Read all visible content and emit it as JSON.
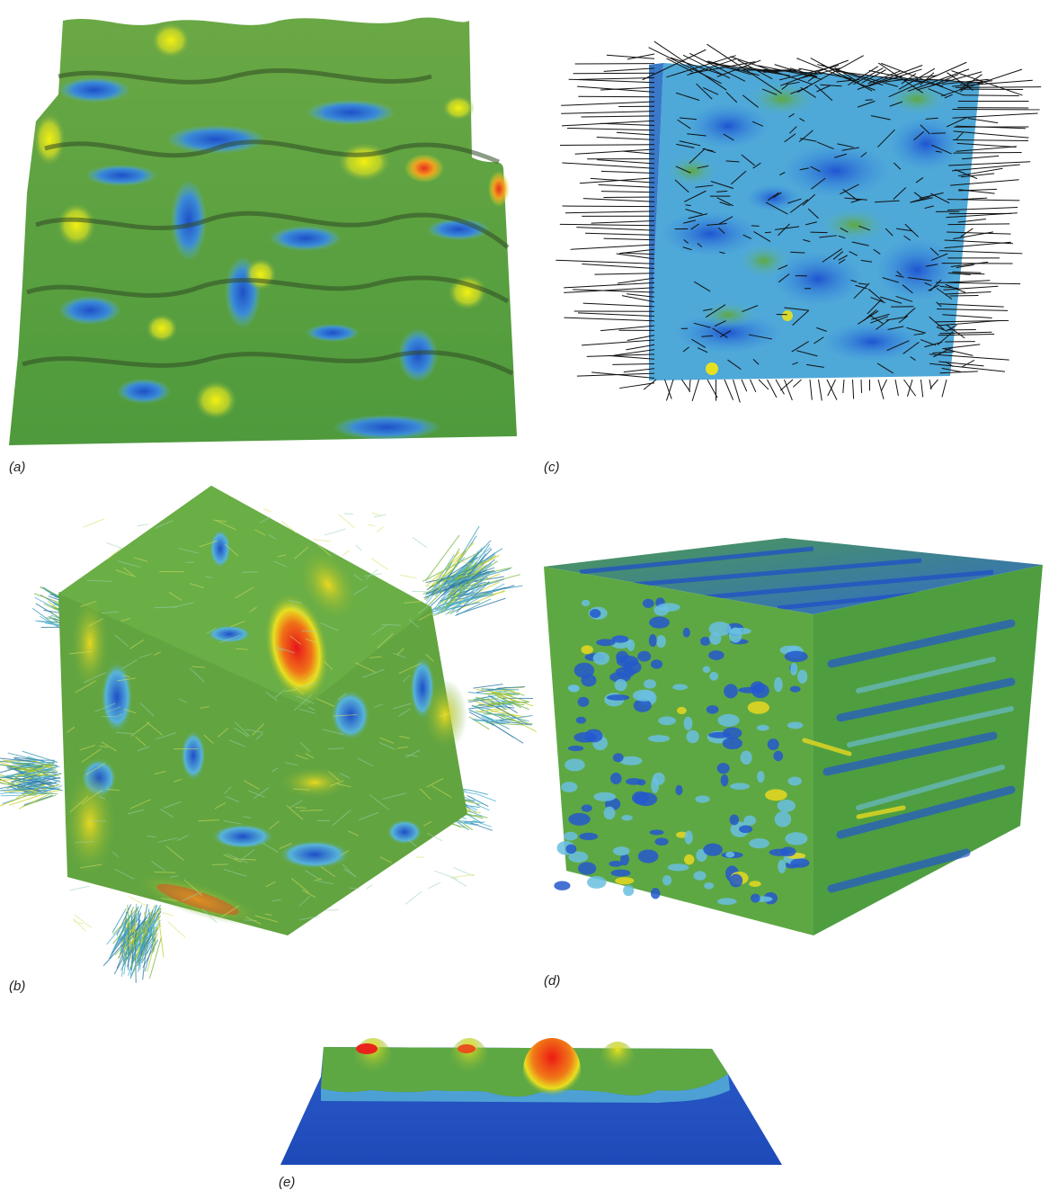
{
  "panels": {
    "a": {
      "label": "(a)"
    },
    "b": {
      "label": "(b)"
    },
    "c": {
      "label": "(c)"
    },
    "d": {
      "label": "(d)"
    },
    "e": {
      "label": "(e)"
    }
  },
  "colors": {
    "blue_dark": "#1e4fc8",
    "blue": "#2f7ad8",
    "cyan": "#58b4d8",
    "green": "#5aa53c",
    "yellow": "#e8e020",
    "red": "#e8241c",
    "needle": "#111111"
  }
}
